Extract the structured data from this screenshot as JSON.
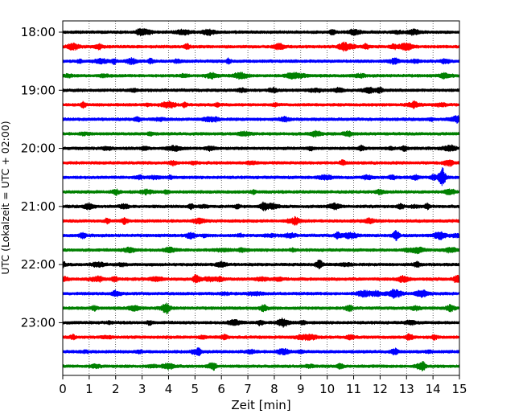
{
  "chart_data": {
    "type": "line",
    "title": "",
    "xlabel": "Zeit  [min]",
    "ylabel": "UTC (Lokalzeit = UTC + 02:00)",
    "xlim": [
      0,
      15
    ],
    "x_ticks": [
      "0",
      "1",
      "2",
      "3",
      "4",
      "5",
      "6",
      "7",
      "8",
      "9",
      "10",
      "11",
      "12",
      "13",
      "14",
      "15"
    ],
    "y_tick_labels": [
      "18:00",
      "19:00",
      "20:00",
      "21:00",
      "22:00",
      "23:00"
    ],
    "grid": "vertical dotted lines at each minute",
    "legend": "none",
    "trace_minutes": 15,
    "trace_colors": [
      "#000000",
      "#ff0000",
      "#0000ff",
      "#008000"
    ],
    "traces": [
      {
        "start": "18:00",
        "color": "#000000"
      },
      {
        "start": "18:15",
        "color": "#ff0000"
      },
      {
        "start": "18:30",
        "color": "#0000ff"
      },
      {
        "start": "18:45",
        "color": "#008000"
      },
      {
        "start": "19:00",
        "color": "#000000"
      },
      {
        "start": "19:15",
        "color": "#ff0000"
      },
      {
        "start": "19:30",
        "color": "#0000ff"
      },
      {
        "start": "19:45",
        "color": "#008000"
      },
      {
        "start": "20:00",
        "color": "#000000"
      },
      {
        "start": "20:15",
        "color": "#ff0000"
      },
      {
        "start": "20:30",
        "color": "#0000ff",
        "events": [
          {
            "t": 14.35,
            "amp": 1.0
          }
        ]
      },
      {
        "start": "20:45",
        "color": "#008000"
      },
      {
        "start": "21:00",
        "color": "#000000",
        "events": [
          {
            "t": 7.6,
            "amp": 0.45
          }
        ]
      },
      {
        "start": "21:15",
        "color": "#ff0000"
      },
      {
        "start": "21:30",
        "color": "#0000ff",
        "events": [
          {
            "t": 12.6,
            "amp": 0.6
          },
          {
            "t": 10.4,
            "amp": 0.35
          }
        ]
      },
      {
        "start": "21:45",
        "color": "#008000"
      },
      {
        "start": "22:00",
        "color": "#000000",
        "events": [
          {
            "t": 9.7,
            "amp": 0.55
          }
        ]
      },
      {
        "start": "22:15",
        "color": "#ff0000",
        "events": [
          {
            "t": 5.05,
            "amp": 0.5
          },
          {
            "t": 14.9,
            "amp": 0.45
          }
        ]
      },
      {
        "start": "22:30",
        "color": "#0000ff",
        "events": [
          {
            "t": 12.5,
            "amp": 0.35
          }
        ]
      },
      {
        "start": "22:45",
        "color": "#008000",
        "events": [
          {
            "t": 7.6,
            "amp": 0.4
          },
          {
            "t": 3.9,
            "amp": 0.35
          }
        ]
      },
      {
        "start": "23:00",
        "color": "#000000"
      },
      {
        "start": "23:15",
        "color": "#ff0000",
        "events": [
          {
            "t": 13.1,
            "amp": 0.35
          }
        ]
      },
      {
        "start": "23:30",
        "color": "#0000ff",
        "events": [
          {
            "t": 12.55,
            "amp": 0.35
          }
        ]
      },
      {
        "start": "23:45",
        "color": "#008000",
        "events": [
          {
            "t": 13.6,
            "amp": 0.55
          }
        ]
      }
    ]
  }
}
